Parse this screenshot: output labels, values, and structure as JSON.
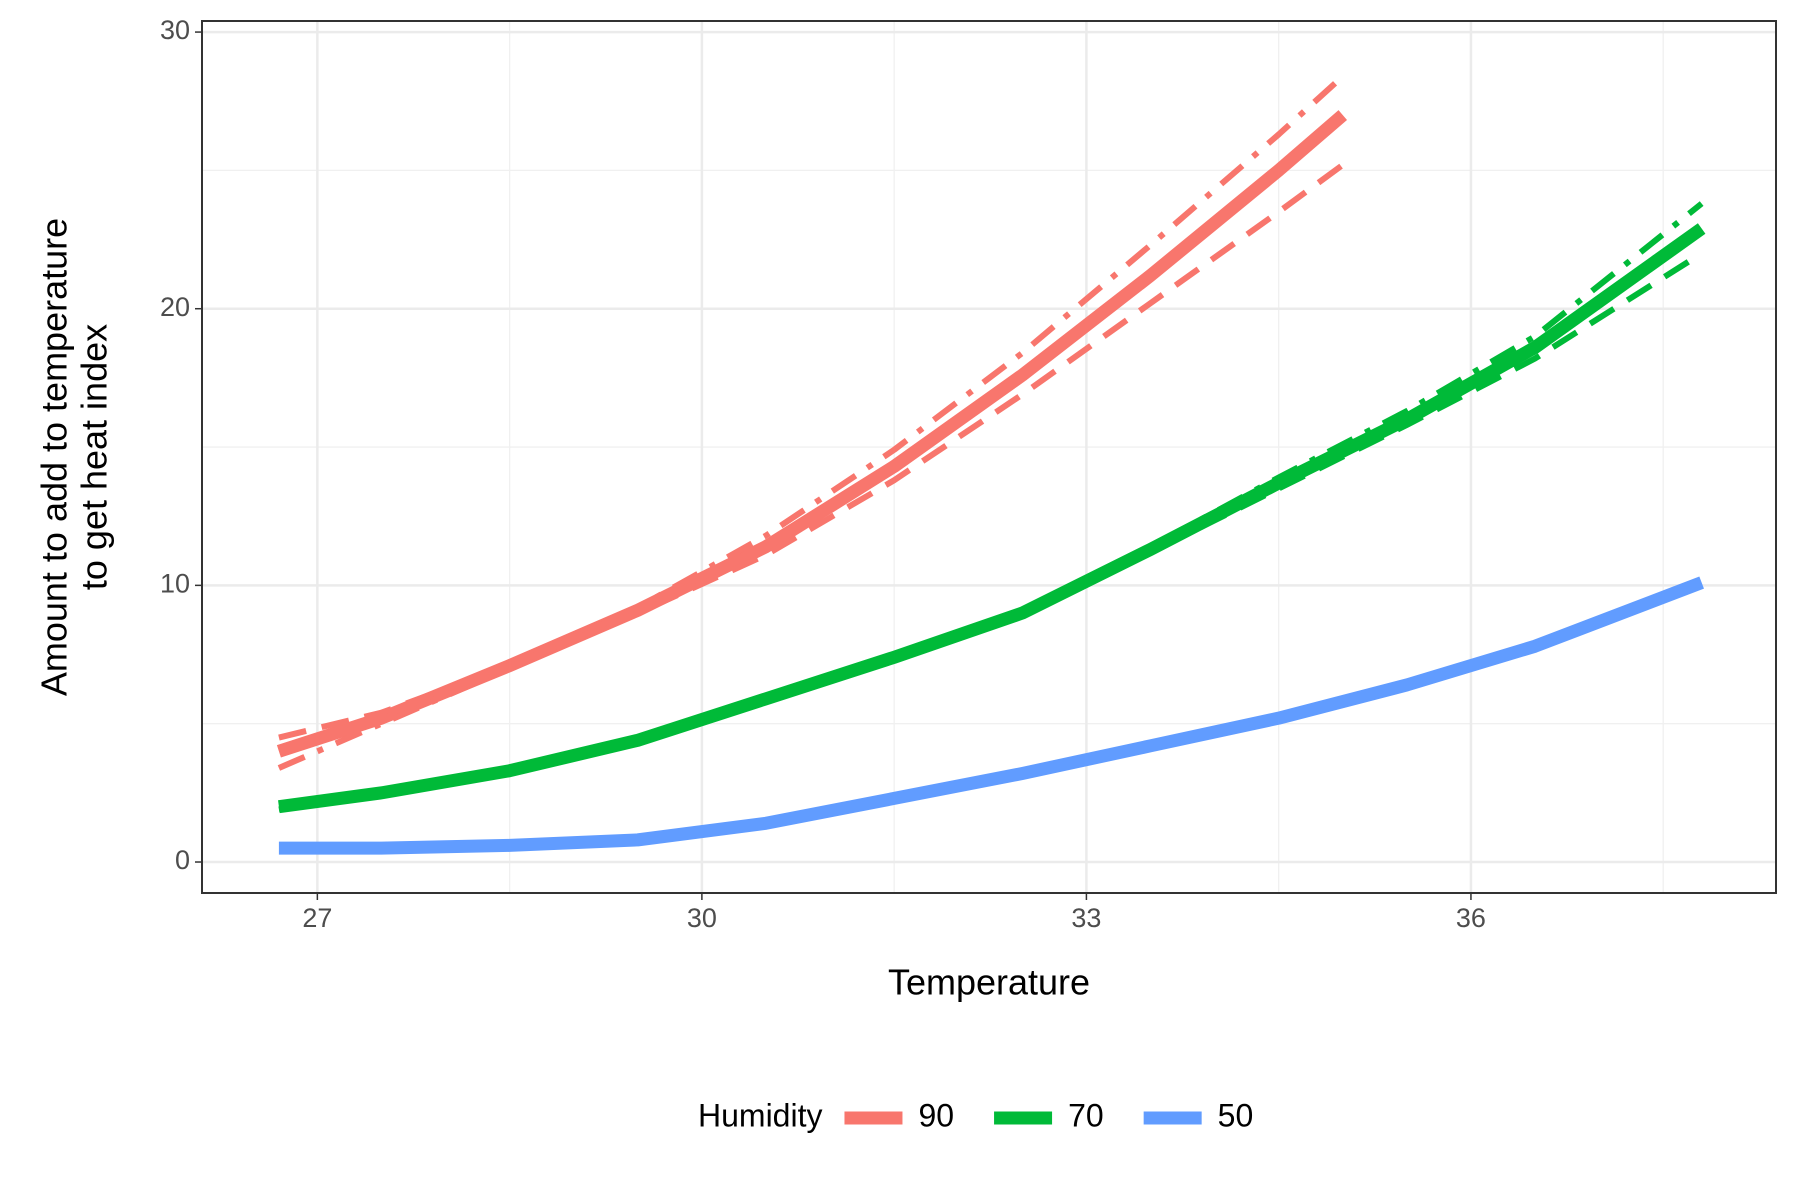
{
  "chart_data": {
    "type": "line",
    "xlabel": "Temperature",
    "ylabel": [
      "Amount to add to temperature",
      "to get heat index"
    ],
    "legend_title": "Humidity",
    "legend": "bottom",
    "grid": true,
    "xlim": [
      26.1,
      38.38
    ],
    "xticks": [
      27,
      30,
      33,
      36
    ],
    "ylim": [
      -1.12,
      30.4
    ],
    "yticks": [
      0,
      10,
      20,
      30
    ],
    "series": [
      {
        "name": "90",
        "color": "#f8766d",
        "dash": "solid",
        "x": [
          26.7,
          27.5,
          28.5,
          29.5,
          30.5,
          31.5,
          32.5,
          33.5,
          34.5,
          35.0
        ],
        "values": [
          4.0,
          5.2,
          7.1,
          9.1,
          11.4,
          14.3,
          17.6,
          21.2,
          25.0,
          27.0
        ]
      },
      {
        "name": "90",
        "color": "#f8766d",
        "dash": "dashdot",
        "x": [
          26.7,
          27.5,
          28.5,
          29.5,
          30.5,
          31.5,
          32.5,
          33.5,
          34.5,
          35.0
        ],
        "values": [
          3.4,
          5.0,
          7.0,
          9.2,
          11.8,
          14.9,
          18.4,
          22.3,
          26.3,
          28.4
        ]
      },
      {
        "name": "90",
        "color": "#f8766d",
        "dash": "dashed",
        "x": [
          26.7,
          27.5,
          28.5,
          29.5,
          30.5,
          31.5,
          32.5,
          33.5,
          34.5,
          35.0
        ],
        "values": [
          4.5,
          5.4,
          7.1,
          9.0,
          11.1,
          13.8,
          16.9,
          20.2,
          23.5,
          25.2
        ]
      },
      {
        "name": "70",
        "color": "#00ba38",
        "dash": "solid",
        "x": [
          26.7,
          27.5,
          28.5,
          29.5,
          30.5,
          31.5,
          32.5,
          33.5,
          34.5,
          35.5,
          36.5,
          37.8
        ],
        "values": [
          2.0,
          2.5,
          3.3,
          4.4,
          5.9,
          7.4,
          9.0,
          11.3,
          13.7,
          16.0,
          18.6,
          22.9
        ]
      },
      {
        "name": "70",
        "color": "#00ba38",
        "dash": "dashdot",
        "x": [
          26.7,
          27.5,
          28.5,
          29.5,
          30.5,
          31.5,
          32.5,
          33.5,
          34.5,
          35.5,
          36.5,
          37.8
        ],
        "values": [
          1.9,
          2.5,
          3.3,
          4.4,
          5.9,
          7.4,
          9.1,
          11.4,
          13.9,
          16.3,
          19.0,
          23.8
        ]
      },
      {
        "name": "70",
        "color": "#00ba38",
        "dash": "dashed",
        "x": [
          26.7,
          27.5,
          28.5,
          29.5,
          30.5,
          31.5,
          32.5,
          33.5,
          34.5,
          35.5,
          36.5,
          37.8
        ],
        "values": [
          2.1,
          2.5,
          3.3,
          4.4,
          5.9,
          7.4,
          8.9,
          11.2,
          13.5,
          15.8,
          18.2,
          22.0
        ]
      },
      {
        "name": "50",
        "color": "#619cff",
        "dash": "solid",
        "x": [
          26.7,
          27.5,
          28.5,
          29.5,
          30.5,
          31.5,
          32.5,
          33.5,
          34.5,
          35.5,
          36.5,
          37.8
        ],
        "values": [
          0.5,
          0.5,
          0.6,
          0.8,
          1.4,
          2.3,
          3.2,
          4.2,
          5.2,
          6.4,
          7.8,
          10.1
        ]
      }
    ]
  }
}
